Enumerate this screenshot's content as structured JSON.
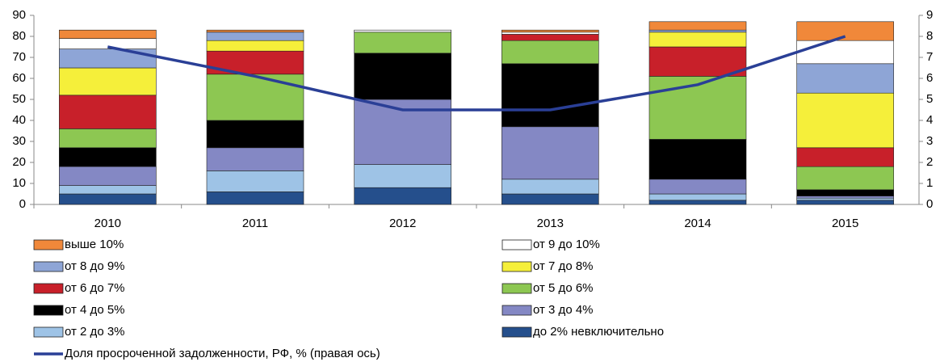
{
  "chart_data": {
    "type": "bar",
    "stacked": true,
    "categories": [
      "2010",
      "2011",
      "2012",
      "2013",
      "2014",
      "2015"
    ],
    "ylim": [
      0,
      90
    ],
    "yticks": [
      0,
      10,
      20,
      30,
      40,
      50,
      60,
      70,
      80,
      90
    ],
    "y2lim": [
      0,
      9
    ],
    "y2ticks": [
      0,
      1,
      2,
      3,
      4,
      5,
      6,
      7,
      8,
      9
    ],
    "grid": false,
    "series": [
      {
        "name": "до 2% невключительно",
        "color": "#254f8c",
        "values": [
          5,
          6,
          8,
          5,
          2,
          2
        ]
      },
      {
        "name": "от 2 до 3%",
        "color": "#9ec3e6",
        "values": [
          4,
          10,
          11,
          7,
          3,
          1
        ]
      },
      {
        "name": "от 3 до 4%",
        "color": "#8488c4",
        "values": [
          9,
          11,
          31,
          25,
          7,
          1
        ]
      },
      {
        "name": "от 4 до 5%",
        "color": "#000000",
        "values": [
          9,
          13,
          22,
          30,
          19,
          3
        ]
      },
      {
        "name": "от 5 до 6%",
        "color": "#8dc752",
        "values": [
          9,
          22,
          10,
          11,
          30,
          11
        ]
      },
      {
        "name": "от 6 до 7%",
        "color": "#c8202a",
        "values": [
          16,
          11,
          0,
          3,
          14,
          9
        ]
      },
      {
        "name": "от 7 до 8%",
        "color": "#f5ef3a",
        "values": [
          13,
          5,
          0,
          0,
          7,
          26
        ]
      },
      {
        "name": "от 8 до 9%",
        "color": "#8ea5d6",
        "values": [
          9,
          4,
          0,
          0,
          1,
          14
        ]
      },
      {
        "name": "от 9 до 10%",
        "color": "#ffffff",
        "values": [
          5,
          0,
          1,
          1,
          0,
          11
        ]
      },
      {
        "name": "выше 10%",
        "color": "#f0883a",
        "values": [
          4,
          1,
          0,
          1,
          4,
          9
        ]
      },
      {
        "name": "Доля просроченной задолженности, РФ, % (правая ось)",
        "color": "#2a3f96",
        "type": "line",
        "axis": "y2",
        "values": [
          7.5,
          6.1,
          4.5,
          4.5,
          5.7,
          8.0
        ]
      }
    ]
  }
}
